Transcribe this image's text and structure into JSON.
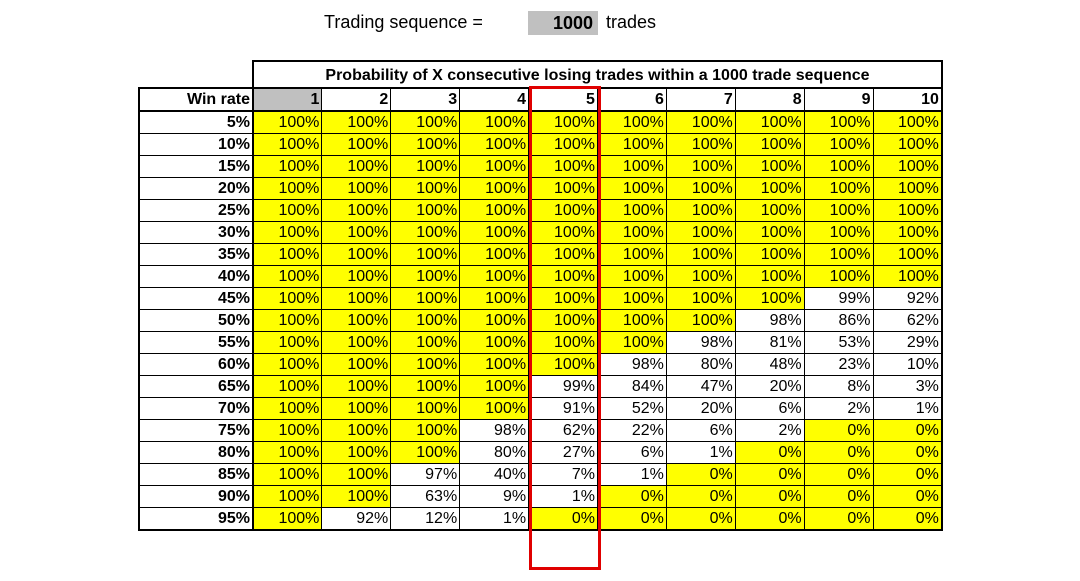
{
  "header": {
    "sequence_label": "Trading sequence =",
    "sequence_value": "1000",
    "sequence_unit": "trades"
  },
  "colors": {
    "highlight_yellow": "#ffff00",
    "header_gray": "#c0c0c0",
    "selection_red": "#e00000"
  },
  "chart_data": {
    "type": "table",
    "title": "Probability of X consecutive losing trades within a 1000 trade sequence",
    "row_header_label": "Win rate",
    "columns": [
      "1",
      "2",
      "3",
      "4",
      "5",
      "6",
      "7",
      "8",
      "9",
      "10"
    ],
    "highlighted_column": "5",
    "rows": [
      {
        "label": "5%",
        "cells": [
          "100%",
          "100%",
          "100%",
          "100%",
          "100%",
          "100%",
          "100%",
          "100%",
          "100%",
          "100%"
        ]
      },
      {
        "label": "10%",
        "cells": [
          "100%",
          "100%",
          "100%",
          "100%",
          "100%",
          "100%",
          "100%",
          "100%",
          "100%",
          "100%"
        ]
      },
      {
        "label": "15%",
        "cells": [
          "100%",
          "100%",
          "100%",
          "100%",
          "100%",
          "100%",
          "100%",
          "100%",
          "100%",
          "100%"
        ]
      },
      {
        "label": "20%",
        "cells": [
          "100%",
          "100%",
          "100%",
          "100%",
          "100%",
          "100%",
          "100%",
          "100%",
          "100%",
          "100%"
        ]
      },
      {
        "label": "25%",
        "cells": [
          "100%",
          "100%",
          "100%",
          "100%",
          "100%",
          "100%",
          "100%",
          "100%",
          "100%",
          "100%"
        ]
      },
      {
        "label": "30%",
        "cells": [
          "100%",
          "100%",
          "100%",
          "100%",
          "100%",
          "100%",
          "100%",
          "100%",
          "100%",
          "100%"
        ]
      },
      {
        "label": "35%",
        "cells": [
          "100%",
          "100%",
          "100%",
          "100%",
          "100%",
          "100%",
          "100%",
          "100%",
          "100%",
          "100%"
        ]
      },
      {
        "label": "40%",
        "cells": [
          "100%",
          "100%",
          "100%",
          "100%",
          "100%",
          "100%",
          "100%",
          "100%",
          "100%",
          "100%"
        ]
      },
      {
        "label": "45%",
        "cells": [
          "100%",
          "100%",
          "100%",
          "100%",
          "100%",
          "100%",
          "100%",
          "100%",
          "99%",
          "92%"
        ]
      },
      {
        "label": "50%",
        "cells": [
          "100%",
          "100%",
          "100%",
          "100%",
          "100%",
          "100%",
          "100%",
          "98%",
          "86%",
          "62%"
        ]
      },
      {
        "label": "55%",
        "cells": [
          "100%",
          "100%",
          "100%",
          "100%",
          "100%",
          "100%",
          "98%",
          "81%",
          "53%",
          "29%"
        ]
      },
      {
        "label": "60%",
        "cells": [
          "100%",
          "100%",
          "100%",
          "100%",
          "100%",
          "98%",
          "80%",
          "48%",
          "23%",
          "10%"
        ]
      },
      {
        "label": "65%",
        "cells": [
          "100%",
          "100%",
          "100%",
          "100%",
          "99%",
          "84%",
          "47%",
          "20%",
          "8%",
          "3%"
        ]
      },
      {
        "label": "70%",
        "cells": [
          "100%",
          "100%",
          "100%",
          "100%",
          "91%",
          "52%",
          "20%",
          "6%",
          "2%",
          "1%"
        ]
      },
      {
        "label": "75%",
        "cells": [
          "100%",
          "100%",
          "100%",
          "98%",
          "62%",
          "22%",
          "6%",
          "2%",
          "0%",
          "0%"
        ]
      },
      {
        "label": "80%",
        "cells": [
          "100%",
          "100%",
          "100%",
          "80%",
          "27%",
          "6%",
          "1%",
          "0%",
          "0%",
          "0%"
        ]
      },
      {
        "label": "85%",
        "cells": [
          "100%",
          "100%",
          "97%",
          "40%",
          "7%",
          "1%",
          "0%",
          "0%",
          "0%",
          "0%"
        ]
      },
      {
        "label": "90%",
        "cells": [
          "100%",
          "100%",
          "63%",
          "9%",
          "1%",
          "0%",
          "0%",
          "0%",
          "0%",
          "0%"
        ]
      },
      {
        "label": "95%",
        "cells": [
          "100%",
          "92%",
          "12%",
          "1%",
          "0%",
          "0%",
          "0%",
          "0%",
          "0%",
          "0%"
        ]
      }
    ]
  }
}
